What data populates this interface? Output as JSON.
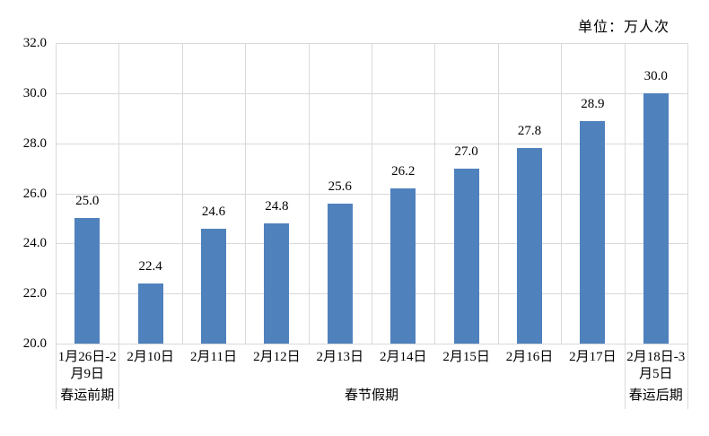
{
  "unit_label": "单位：万人次",
  "chart_data": {
    "type": "bar",
    "title": "",
    "unit_label": "单位：万人次",
    "categories": [
      "1月26日-2月9日",
      "2月10日",
      "2月11日",
      "2月12日",
      "2月13日",
      "2月14日",
      "2月15日",
      "2月16日",
      "2月17日",
      "2月18日-3月5日"
    ],
    "values": [
      25.0,
      22.4,
      24.6,
      24.8,
      25.6,
      26.2,
      27.0,
      27.8,
      28.9,
      30.0
    ],
    "value_labels": [
      "25.0",
      "22.4",
      "24.6",
      "24.8",
      "25.6",
      "26.2",
      "27.0",
      "27.8",
      "28.9",
      "30.0"
    ],
    "groups": [
      {
        "label": "春运前期",
        "start": 0,
        "span": 1
      },
      {
        "label": "春节假期",
        "start": 1,
        "span": 8
      },
      {
        "label": "春运后期",
        "start": 9,
        "span": 1
      }
    ],
    "y_axis": {
      "min": 20,
      "max": 32,
      "step": 2,
      "tick_labels": [
        "32.0",
        "30.0",
        "28.0",
        "26.0",
        "24.0",
        "22.0",
        "20.0"
      ]
    },
    "xlabel": "",
    "ylabel": "",
    "grid": true,
    "legend_position": "none",
    "bar_color": "#4F81BD",
    "gridline_color": "#D9D9D9",
    "text_color": "#000000"
  }
}
